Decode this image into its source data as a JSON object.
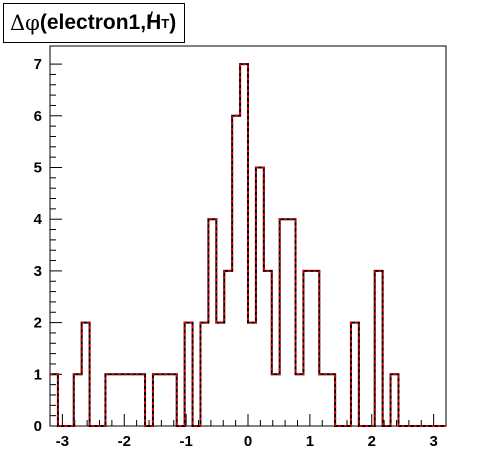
{
  "title": {
    "delta": "Δφ",
    "main": "(electron1,",
    "ht_letter": "H",
    "ht_slash": "/",
    "ht_sub": "T",
    "close": ")"
  },
  "chart_data": {
    "type": "histogram",
    "title": "Δφ(electron1,H̸T)",
    "xlabel": "",
    "ylabel": "",
    "xlim": [
      -3.2,
      3.2
    ],
    "ylim": [
      0,
      7.35
    ],
    "xticks": [
      "-3",
      "-2",
      "-1",
      "0",
      "1",
      "2",
      "3"
    ],
    "yticks": [
      "0",
      "1",
      "2",
      "3",
      "4",
      "5",
      "6",
      "7"
    ],
    "bin_width": 0.128,
    "bins": [
      {
        "x0": -3.2,
        "value": 1
      },
      {
        "x0": -3.072,
        "value": 0
      },
      {
        "x0": -2.944,
        "value": 0
      },
      {
        "x0": -2.816,
        "value": 1
      },
      {
        "x0": -2.688,
        "value": 2
      },
      {
        "x0": -2.56,
        "value": 0
      },
      {
        "x0": -2.432,
        "value": 0
      },
      {
        "x0": -2.304,
        "value": 1
      },
      {
        "x0": -2.176,
        "value": 1
      },
      {
        "x0": -2.048,
        "value": 1
      },
      {
        "x0": -1.92,
        "value": 1
      },
      {
        "x0": -1.792,
        "value": 1
      },
      {
        "x0": -1.664,
        "value": 0
      },
      {
        "x0": -1.536,
        "value": 1
      },
      {
        "x0": -1.408,
        "value": 1
      },
      {
        "x0": -1.28,
        "value": 1
      },
      {
        "x0": -1.152,
        "value": 0
      },
      {
        "x0": -1.024,
        "value": 2
      },
      {
        "x0": -0.896,
        "value": 0
      },
      {
        "x0": -0.768,
        "value": 2
      },
      {
        "x0": -0.64,
        "value": 4
      },
      {
        "x0": -0.512,
        "value": 2
      },
      {
        "x0": -0.384,
        "value": 3
      },
      {
        "x0": -0.256,
        "value": 6
      },
      {
        "x0": -0.128,
        "value": 7
      },
      {
        "x0": 0.0,
        "value": 2
      },
      {
        "x0": 0.128,
        "value": 5
      },
      {
        "x0": 0.256,
        "value": 3
      },
      {
        "x0": 0.384,
        "value": 1
      },
      {
        "x0": 0.512,
        "value": 4
      },
      {
        "x0": 0.64,
        "value": 4
      },
      {
        "x0": 0.768,
        "value": 1
      },
      {
        "x0": 0.896,
        "value": 3
      },
      {
        "x0": 1.024,
        "value": 3
      },
      {
        "x0": 1.152,
        "value": 1
      },
      {
        "x0": 1.28,
        "value": 1
      },
      {
        "x0": 1.408,
        "value": 0
      },
      {
        "x0": 1.536,
        "value": 0
      },
      {
        "x0": 1.664,
        "value": 2
      },
      {
        "x0": 1.792,
        "value": 0
      },
      {
        "x0": 1.92,
        "value": 0
      },
      {
        "x0": 2.048,
        "value": 3
      },
      {
        "x0": 2.176,
        "value": 0
      },
      {
        "x0": 2.304,
        "value": 1
      },
      {
        "x0": 2.432,
        "value": 0
      },
      {
        "x0": 2.56,
        "value": 0
      },
      {
        "x0": 2.688,
        "value": 0
      },
      {
        "x0": 2.816,
        "value": 0
      },
      {
        "x0": 2.944,
        "value": 0
      },
      {
        "x0": 3.072,
        "value": 0
      }
    ],
    "series": [
      {
        "style": "solid",
        "color": "#000000"
      },
      {
        "style": "dashed",
        "color": "#cc0000"
      }
    ],
    "grid": false,
    "legend": "none"
  }
}
